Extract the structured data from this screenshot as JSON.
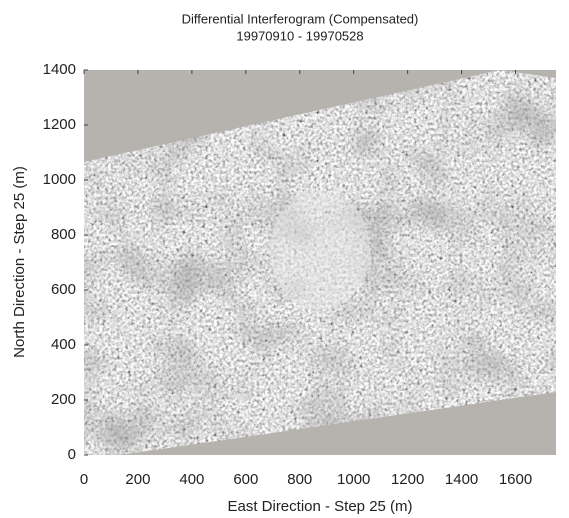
{
  "chart_data": {
    "type": "image",
    "title": "Differential Interferogram (Compensated)",
    "subtitle": "19970910 - 19970528",
    "xlabel": "East Direction - Step 25 (m)",
    "ylabel": "North Direction - Step 25 (m)",
    "xlim": [
      0,
      1750
    ],
    "ylim": [
      0,
      1400
    ],
    "xticks": [
      0,
      200,
      400,
      600,
      800,
      1000,
      1200,
      1400,
      1600
    ],
    "yticks": [
      0,
      200,
      400,
      600,
      800,
      1000,
      1200,
      1400
    ]
  }
}
